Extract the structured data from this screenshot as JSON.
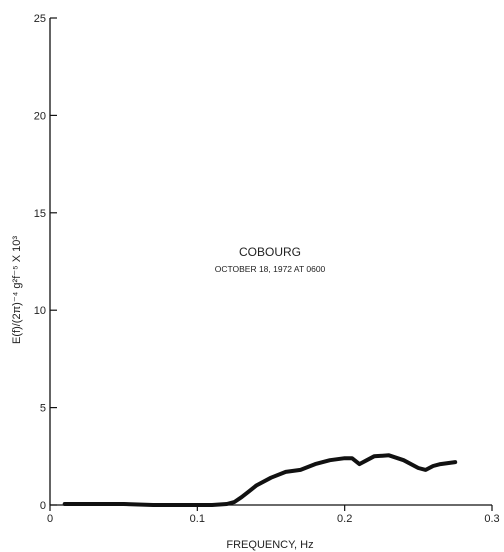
{
  "chart_data": {
    "type": "line",
    "title": "",
    "xlabel": "FREQUENCY, Hz",
    "ylabel": "E(f)/(2π)⁻⁴ g²f⁻⁵ X 10³",
    "xlim": [
      0,
      0.3
    ],
    "ylim": [
      0,
      25
    ],
    "x_ticks": [
      "0",
      "0.1",
      "0.2",
      "0.3"
    ],
    "y_ticks": [
      "0",
      "5",
      "10",
      "15",
      "20",
      "25"
    ],
    "grid": false,
    "annotations": {
      "title": "COBOURG",
      "subtitle": "OCTOBER 18, 1972 AT 0600"
    },
    "series": [
      {
        "x": [
          0.01,
          0.03,
          0.05,
          0.07,
          0.09,
          0.11,
          0.12,
          0.125,
          0.13,
          0.135,
          0.14,
          0.15,
          0.16,
          0.17,
          0.18,
          0.19,
          0.2,
          0.205,
          0.21,
          0.215,
          0.22,
          0.23,
          0.24,
          0.25,
          0.255,
          0.26,
          0.265,
          0.27,
          0.275
        ],
        "y": [
          0.05,
          0.05,
          0.05,
          0.0,
          0.0,
          0.0,
          0.05,
          0.15,
          0.4,
          0.7,
          1.0,
          1.4,
          1.7,
          1.8,
          2.1,
          2.3,
          2.4,
          2.4,
          2.1,
          2.3,
          2.5,
          2.55,
          2.3,
          1.9,
          1.8,
          2.0,
          2.1,
          2.15,
          2.2
        ],
        "color": "#111111"
      }
    ]
  }
}
